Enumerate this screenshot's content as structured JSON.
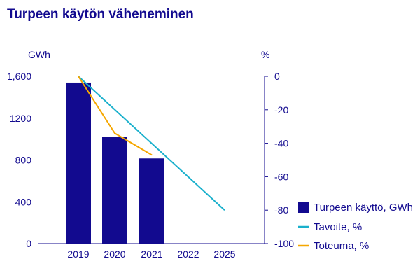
{
  "chart_data": {
    "type": "bar",
    "title": "Turpeen käytön väheneminen",
    "categories": [
      "2019",
      "2020",
      "2021",
      "2022",
      "2025"
    ],
    "left_axis": {
      "unit": "GWh",
      "ylim": [
        0,
        1600
      ],
      "ticks": [
        0,
        400,
        800,
        1200,
        1600
      ],
      "tick_labels": [
        "0",
        "400",
        "800",
        "1200",
        "1,600"
      ]
    },
    "right_axis": {
      "unit": "%",
      "ylim": [
        -100,
        0
      ],
      "ticks": [
        0,
        -20,
        -40,
        -60,
        -80,
        -100
      ],
      "tick_labels": [
        "0",
        "-20",
        "-40",
        "-60",
        "-80",
        "-100"
      ]
    },
    "series": [
      {
        "name": "Turpeen käyttö, GWh",
        "kind": "bar",
        "axis": "left",
        "color": "#120a8f",
        "values": [
          1540,
          1020,
          815,
          null,
          null
        ]
      },
      {
        "name": "Tavoite, %",
        "kind": "line",
        "axis": "right",
        "color": "#1ab0cc",
        "values": [
          0,
          null,
          null,
          null,
          -80
        ]
      },
      {
        "name": "Toteuma, %",
        "kind": "line",
        "axis": "right",
        "color": "#f5a700",
        "values": [
          0,
          -34,
          -47,
          null,
          null
        ]
      }
    ],
    "legend_position": "right",
    "grid": false
  }
}
